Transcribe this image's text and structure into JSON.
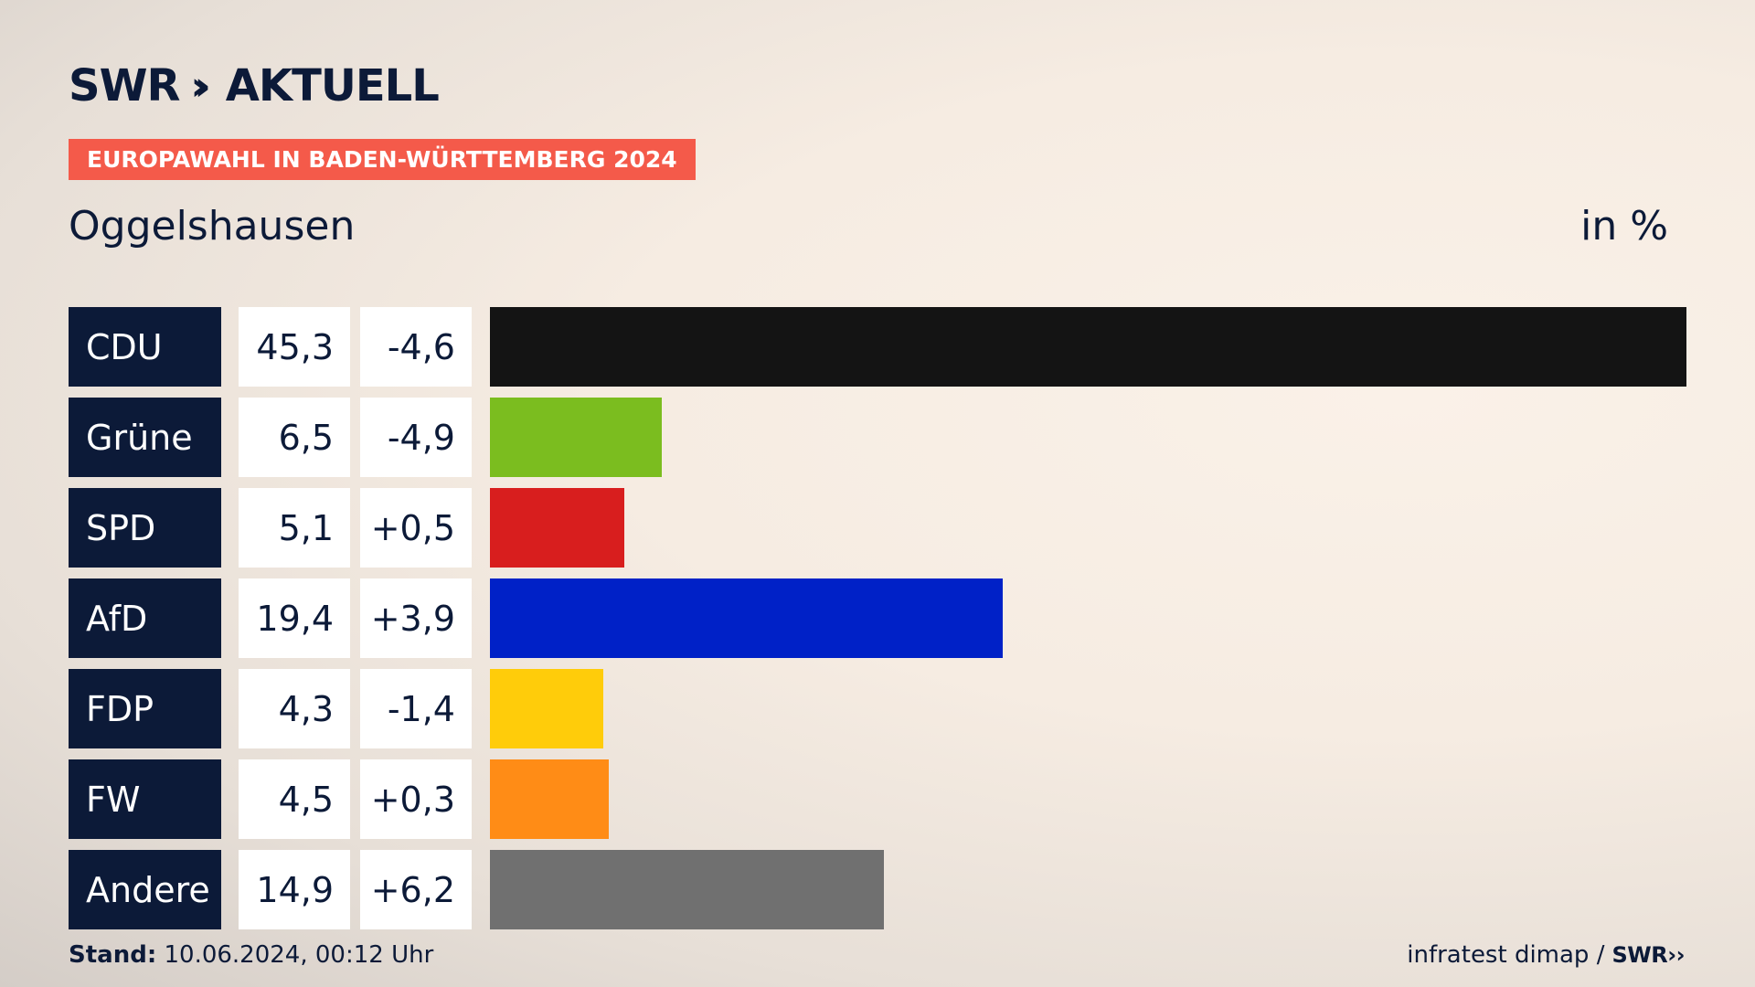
{
  "header": {
    "logo_left": "SWR",
    "logo_chevrons": "››",
    "logo_right": "AKTUELL",
    "badge": "EUROPAWAHL IN BADEN-WÜRTTEMBERG 2024",
    "place": "Oggelshausen",
    "unit": "in %"
  },
  "colors": {
    "navy": "#0c1a38",
    "badge": "#f45a4a"
  },
  "chart_data": {
    "type": "bar",
    "orientation": "horizontal",
    "title": "Oggelshausen",
    "unit": "in %",
    "categories": [
      "CDU",
      "Grüne",
      "SPD",
      "AfD",
      "FDP",
      "FW",
      "Andere"
    ],
    "values": [
      45.3,
      6.5,
      5.1,
      19.4,
      4.3,
      4.5,
      14.9
    ],
    "value_labels": [
      "45,3",
      "6,5",
      "5,1",
      "19,4",
      "4,3",
      "4,5",
      "14,9"
    ],
    "changes": [
      -4.6,
      -4.9,
      0.5,
      3.9,
      -1.4,
      0.3,
      6.2
    ],
    "change_labels": [
      "-4,6",
      "-4,9",
      "+0,5",
      "+3,9",
      "-1,4",
      "+0,3",
      "+6,2"
    ],
    "colors": [
      "#141414",
      "#7bbd1f",
      "#d81e1e",
      "#0021c7",
      "#ffcc0a",
      "#ff8c16",
      "#707070"
    ],
    "xlim": [
      0,
      45.3
    ],
    "grid": false,
    "legend": "none"
  },
  "footer": {
    "stand_label": "Stand:",
    "stand_value": "10.06.2024, 00:12 Uhr",
    "source": "infratest dimap /",
    "source_logo": "SWR"
  }
}
